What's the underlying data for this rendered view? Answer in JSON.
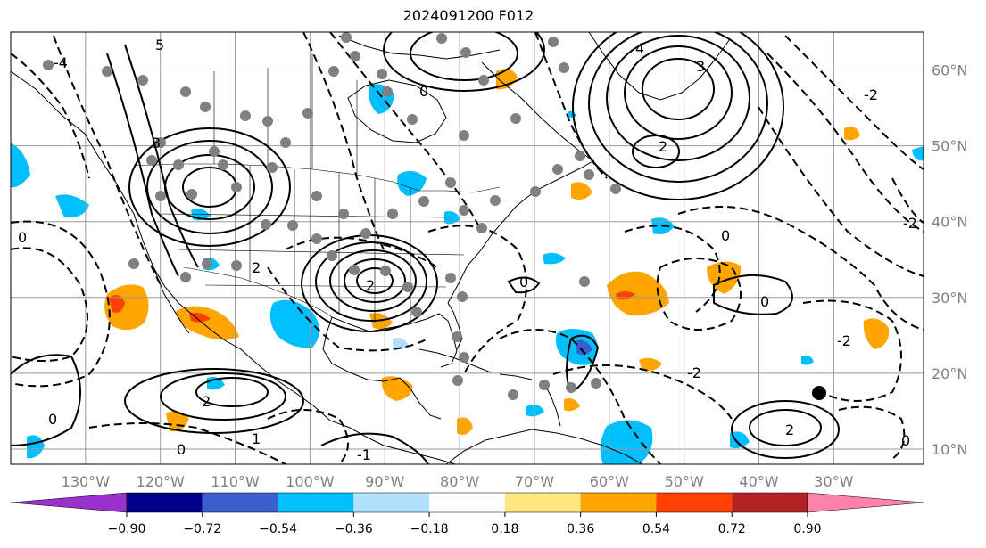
{
  "title": "2024091200 F012",
  "colors": {
    "land_line": "#000000",
    "grid": "#999999",
    "station": "#808080"
  },
  "map": {
    "lon_range": [
      -140,
      -18
    ],
    "lat_range": [
      8,
      65
    ],
    "lon_labels": [
      "130°W",
      "120°W",
      "110°W",
      "100°W",
      "90°W",
      "80°W",
      "70°W",
      "60°W",
      "50°W",
      "40°W",
      "30°W"
    ],
    "lon_values": [
      -130,
      -120,
      -110,
      -100,
      -90,
      -80,
      -70,
      -60,
      -50,
      -40,
      -30
    ],
    "lat_labels": [
      "10°N",
      "20°N",
      "30°N",
      "40°N",
      "50°N",
      "60°N"
    ],
    "lat_values": [
      10,
      20,
      30,
      40,
      50,
      60
    ],
    "contour_labels": [
      "0",
      "2",
      "-2",
      "-1",
      "1",
      "3",
      "4",
      "-4",
      "5"
    ]
  },
  "colorbar": {
    "levels": [
      "−0.90",
      "−0.72",
      "−0.54",
      "−0.36",
      "−0.18",
      "0.18",
      "0.36",
      "0.54",
      "0.72",
      "0.90"
    ],
    "colors": [
      "#9932cc",
      "#00008b",
      "#3a5fcd",
      "#00bfff",
      "#b0e2ff",
      "#ffffff",
      "#ffe680",
      "#ffa500",
      "#ff4000",
      "#b22222",
      "#ff82ab"
    ]
  }
}
